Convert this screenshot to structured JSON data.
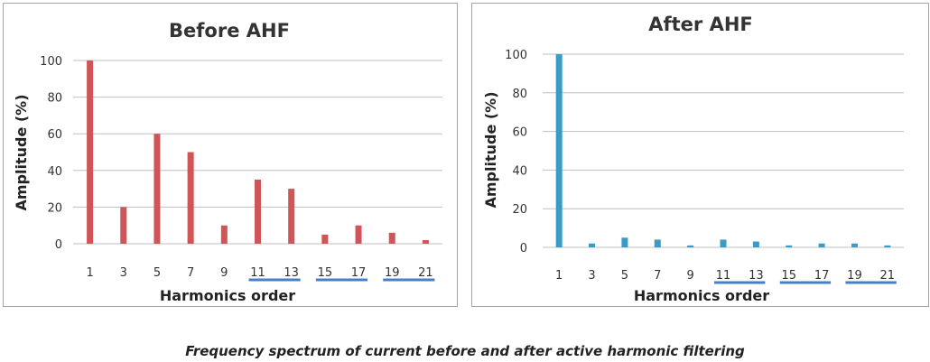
{
  "caption": "Frequency spectrum of current before and after active harmonic filtering",
  "colors": {
    "before_bars": "#d05557",
    "after_bars": "#3a9bc6",
    "underline": "#4a7fc8",
    "gridline": "#bfbfbf"
  },
  "chart_data": [
    {
      "type": "bar",
      "title": "Before AHF",
      "xlabel": "Harmonics order",
      "ylabel": "Amplitude  (%)",
      "categories": [
        "1",
        "3",
        "5",
        "7",
        "9",
        "11",
        "13",
        "15",
        "17",
        "19",
        "21"
      ],
      "values": [
        100,
        20,
        60,
        50,
        10,
        35,
        30,
        5,
        10,
        6,
        2
      ],
      "ylim": [
        0,
        100
      ],
      "yticks": [
        "0",
        "20",
        "40",
        "60",
        "80",
        "100"
      ],
      "grid": true,
      "highlighted_groups": [
        [
          "11",
          "13"
        ],
        [
          "15",
          "17"
        ],
        [
          "19",
          "21"
        ]
      ]
    },
    {
      "type": "bar",
      "title": "After AHF",
      "xlabel": "Harmonics order",
      "ylabel": "Amplitude  (%)",
      "categories": [
        "1",
        "3",
        "5",
        "7",
        "9",
        "11",
        "13",
        "15",
        "17",
        "19",
        "21"
      ],
      "values": [
        100,
        2,
        5,
        4,
        1,
        4,
        3,
        1,
        2,
        2,
        1
      ],
      "ylim": [
        0,
        100
      ],
      "yticks": [
        "0",
        "20",
        "40",
        "60",
        "80",
        "100"
      ],
      "grid": true,
      "highlighted_groups": [
        [
          "11",
          "13"
        ],
        [
          "15",
          "17"
        ],
        [
          "19",
          "21"
        ]
      ]
    }
  ]
}
